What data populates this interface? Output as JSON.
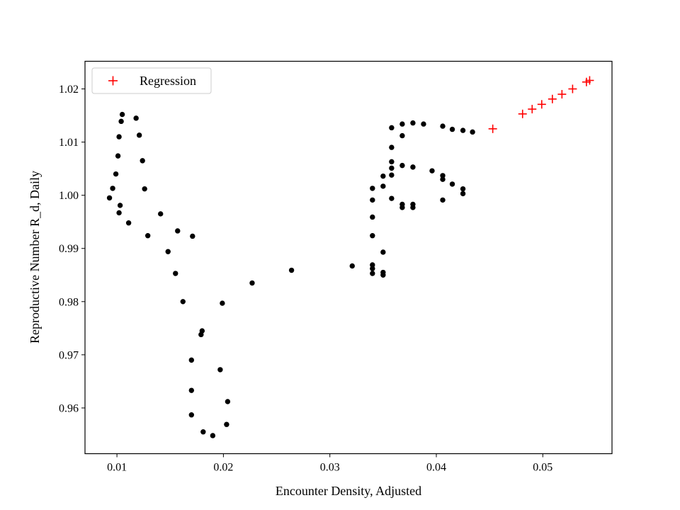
{
  "chart_data": {
    "type": "scatter",
    "title": "",
    "xlabel": "Encounter Density, Adjusted",
    "ylabel": "Reproductive Number R_d, Daily",
    "xlim": [
      0.007,
      0.0565
    ],
    "ylim": [
      0.9514,
      1.0252
    ],
    "grid": false,
    "legend_position": "top-left",
    "x_ticks": [
      0.01,
      0.02,
      0.03,
      0.04,
      0.05
    ],
    "x_tick_labels": [
      "0.01",
      "0.02",
      "0.03",
      "0.04",
      "0.05"
    ],
    "y_ticks": [
      0.96,
      0.97,
      0.98,
      0.99,
      1.0,
      1.01,
      1.02
    ],
    "y_tick_labels": [
      "0.96",
      "0.97",
      "0.98",
      "0.99",
      "1.00",
      "1.01",
      "1.02"
    ],
    "series": [
      {
        "name": "",
        "marker": "dot",
        "color": "#000000",
        "points": [
          [
            0.0105,
            1.0152
          ],
          [
            0.0118,
            1.0145
          ],
          [
            0.0104,
            1.0139
          ],
          [
            0.0121,
            1.0113
          ],
          [
            0.0102,
            1.011
          ],
          [
            0.0124,
            1.0065
          ],
          [
            0.0101,
            1.0074
          ],
          [
            0.0099,
            1.004
          ],
          [
            0.0096,
            1.0013
          ],
          [
            0.0126,
            1.0012
          ],
          [
            0.0093,
            0.9995
          ],
          [
            0.0103,
            0.9981
          ],
          [
            0.0102,
            0.9967
          ],
          [
            0.0141,
            0.9965
          ],
          [
            0.0111,
            0.9948
          ],
          [
            0.0157,
            0.9933
          ],
          [
            0.0129,
            0.9924
          ],
          [
            0.0171,
            0.9923
          ],
          [
            0.0148,
            0.9894
          ],
          [
            0.0155,
            0.9853
          ],
          [
            0.0162,
            0.98
          ],
          [
            0.0199,
            0.9797
          ],
          [
            0.018,
            0.9745
          ],
          [
            0.0179,
            0.9738
          ],
          [
            0.017,
            0.969
          ],
          [
            0.0197,
            0.9672
          ],
          [
            0.017,
            0.9633
          ],
          [
            0.0204,
            0.9612
          ],
          [
            0.017,
            0.9587
          ],
          [
            0.0203,
            0.9569
          ],
          [
            0.0181,
            0.9555
          ],
          [
            0.019,
            0.9548
          ],
          [
            0.0227,
            0.9835
          ],
          [
            0.0264,
            0.9859
          ],
          [
            0.0321,
            0.9867
          ],
          [
            0.034,
            0.9869
          ],
          [
            0.034,
            0.9862
          ],
          [
            0.034,
            0.9853
          ],
          [
            0.035,
            0.9855
          ],
          [
            0.035,
            0.985
          ],
          [
            0.035,
            0.9893
          ],
          [
            0.034,
            0.9924
          ],
          [
            0.034,
            0.9959
          ],
          [
            0.034,
            0.9991
          ],
          [
            0.034,
            1.0013
          ],
          [
            0.035,
            1.0017
          ],
          [
            0.035,
            1.0036
          ],
          [
            0.0358,
            1.0038
          ],
          [
            0.0358,
            1.0051
          ],
          [
            0.0358,
            1.0063
          ],
          [
            0.0358,
            1.009
          ],
          [
            0.0358,
            1.0127
          ],
          [
            0.0368,
            1.0112
          ],
          [
            0.0368,
            1.0134
          ],
          [
            0.0378,
            1.0136
          ],
          [
            0.0388,
            1.0134
          ],
          [
            0.0368,
            1.0056
          ],
          [
            0.0378,
            1.0053
          ],
          [
            0.0396,
            1.0046
          ],
          [
            0.0406,
            1.0037
          ],
          [
            0.0406,
            1.003
          ],
          [
            0.0415,
            1.0021
          ],
          [
            0.0425,
            1.0012
          ],
          [
            0.0425,
            1.0003
          ],
          [
            0.0406,
            0.9991
          ],
          [
            0.0358,
            0.9994
          ],
          [
            0.0368,
            0.9983
          ],
          [
            0.0368,
            0.9977
          ],
          [
            0.0378,
            0.9983
          ],
          [
            0.0378,
            0.9977
          ],
          [
            0.0406,
            1.013
          ],
          [
            0.0415,
            1.0124
          ],
          [
            0.0425,
            1.0122
          ],
          [
            0.0434,
            1.0119
          ]
        ]
      },
      {
        "name": "Regression",
        "marker": "plus",
        "color": "#ff0000",
        "points": [
          [
            0.0453,
            1.0125
          ],
          [
            0.0481,
            1.0153
          ],
          [
            0.049,
            1.0162
          ],
          [
            0.0499,
            1.0171
          ],
          [
            0.0509,
            1.0181
          ],
          [
            0.0518,
            1.019
          ],
          [
            0.0528,
            1.02
          ],
          [
            0.0541,
            1.0213
          ],
          [
            0.0544,
            1.0216
          ]
        ]
      }
    ]
  }
}
